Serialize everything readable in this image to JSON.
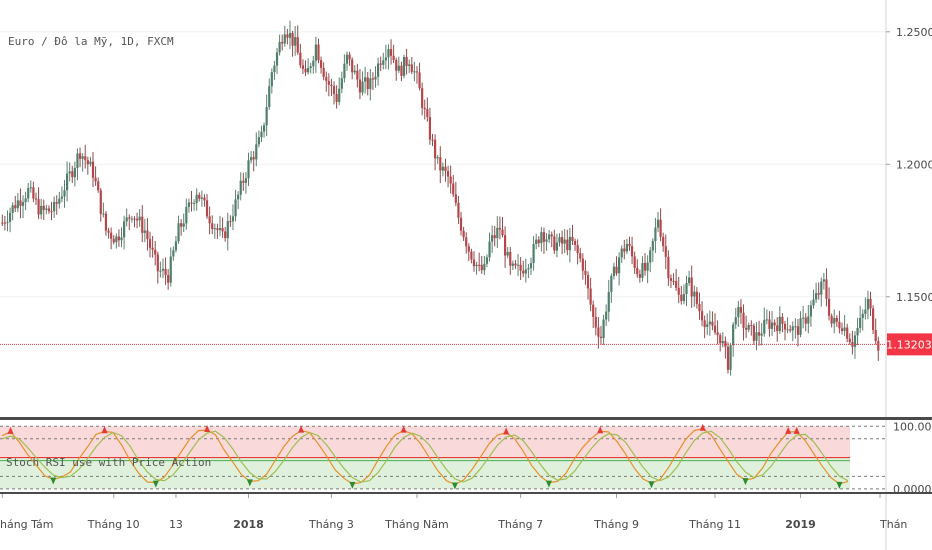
{
  "symbol_title": "Euro / Đô la Mỹ, 1D, FXCM",
  "indicator_label": "Stoch RSI use with Price Action",
  "colors": {
    "up": "#26a69a",
    "down": "#ef5350",
    "candle_body_up": "#4f7f6a",
    "candle_body_down": "#b6464a",
    "last_price": "#f23645",
    "stoch_k": "#e8902a",
    "stoch_d": "#9fbf52",
    "overbought_zone": "#f8d2d2",
    "oversold_zone": "#d9efd6",
    "signal_up": "#2e8b2e",
    "signal_down": "#e53935"
  },
  "chart_data": [
    {
      "type": "candlestick",
      "title": "Euro / Đô la Mỹ, 1D, FXCM",
      "ylim": [
        1.105,
        1.262
      ],
      "y_ticks": [
        "1.25000",
        "1.20000",
        "1.15000"
      ],
      "y_tick_values": [
        1.25,
        1.2,
        1.15
      ],
      "last_price": 1.13203,
      "last_price_label": "1.13203",
      "x_tick_labels": [
        "háng Tám",
        "Tháng 10",
        "13",
        "2018",
        "Tháng 3",
        "Tháng Năm",
        "Tháng 7",
        "Tháng 9",
        "Tháng 11",
        "2019",
        "Thán"
      ],
      "x_tick_bold": [
        false,
        false,
        false,
        true,
        false,
        false,
        false,
        false,
        false,
        true,
        false
      ],
      "x_tick_index": [
        0,
        43,
        67,
        95,
        127,
        160,
        200,
        237,
        275,
        308,
        345
      ],
      "bars": 338,
      "price_path": [
        [
          0,
          1.178
        ],
        [
          5,
          1.185
        ],
        [
          10,
          1.19
        ],
        [
          15,
          1.182
        ],
        [
          20,
          1.183
        ],
        [
          27,
          1.198
        ],
        [
          30,
          1.205
        ],
        [
          35,
          1.197
        ],
        [
          40,
          1.175
        ],
        [
          44,
          1.172
        ],
        [
          50,
          1.182
        ],
        [
          55,
          1.175
        ],
        [
          60,
          1.16
        ],
        [
          64,
          1.158
        ],
        [
          68,
          1.175
        ],
        [
          75,
          1.19
        ],
        [
          80,
          1.18
        ],
        [
          85,
          1.172
        ],
        [
          90,
          1.185
        ],
        [
          95,
          1.2
        ],
        [
          100,
          1.21
        ],
        [
          104,
          1.235
        ],
        [
          109,
          1.252
        ],
        [
          113,
          1.245
        ],
        [
          117,
          1.232
        ],
        [
          121,
          1.245
        ],
        [
          125,
          1.232
        ],
        [
          129,
          1.225
        ],
        [
          133,
          1.24
        ],
        [
          138,
          1.23
        ],
        [
          142,
          1.23
        ],
        [
          146,
          1.24
        ],
        [
          149,
          1.245
        ],
        [
          153,
          1.235
        ],
        [
          157,
          1.24
        ],
        [
          160,
          1.232
        ],
        [
          164,
          1.215
        ],
        [
          168,
          1.2
        ],
        [
          172,
          1.195
        ],
        [
          176,
          1.18
        ],
        [
          180,
          1.168
        ],
        [
          184,
          1.16
        ],
        [
          186,
          1.16
        ],
        [
          188,
          1.17
        ],
        [
          192,
          1.176
        ],
        [
          196,
          1.16
        ],
        [
          200,
          1.16
        ],
        [
          204,
          1.165
        ],
        [
          208,
          1.175
        ],
        [
          212,
          1.17
        ],
        [
          216,
          1.17
        ],
        [
          220,
          1.17
        ],
        [
          224,
          1.162
        ],
        [
          228,
          1.142
        ],
        [
          231,
          1.135
        ],
        [
          234,
          1.152
        ],
        [
          238,
          1.165
        ],
        [
          241,
          1.17
        ],
        [
          245,
          1.16
        ],
        [
          249,
          1.16
        ],
        [
          253,
          1.18
        ],
        [
          257,
          1.16
        ],
        [
          261,
          1.15
        ],
        [
          265,
          1.155
        ],
        [
          269,
          1.145
        ],
        [
          273,
          1.138
        ],
        [
          277,
          1.135
        ],
        [
          280,
          1.125
        ],
        [
          283,
          1.145
        ],
        [
          287,
          1.138
        ],
        [
          291,
          1.135
        ],
        [
          295,
          1.14
        ],
        [
          299,
          1.14
        ],
        [
          302,
          1.14
        ],
        [
          306,
          1.137
        ],
        [
          309,
          1.14
        ],
        [
          313,
          1.148
        ],
        [
          317,
          1.155
        ],
        [
          320,
          1.14
        ],
        [
          324,
          1.14
        ],
        [
          328,
          1.133
        ],
        [
          331,
          1.14
        ],
        [
          334,
          1.148
        ],
        [
          338,
          1.132
        ]
      ]
    },
    {
      "type": "line",
      "title": "Stoch RSI use with Price Action",
      "ylim": [
        -5,
        110
      ],
      "y_ticks": [
        "100.0000",
        "0.0000"
      ],
      "y_tick_values": [
        100,
        0
      ],
      "overbought": 80,
      "oversold": 20,
      "midline": 50,
      "series": [
        {
          "role": "k",
          "values": [
            85,
            91,
            75,
            55,
            38,
            21,
            15,
            19,
            27,
            48,
            67,
            87,
            92,
            90,
            70,
            45,
            25,
            11,
            10,
            19,
            38,
            60,
            80,
            93,
            94,
            86,
            62,
            43,
            23,
            12,
            13,
            24,
            46,
            68,
            84,
            93,
            90,
            72,
            52,
            30,
            17,
            8,
            10,
            22,
            46,
            68,
            86,
            93,
            88,
            72,
            50,
            29,
            13,
            7,
            14,
            31,
            51,
            72,
            86,
            90,
            80,
            60,
            37,
            20,
            10,
            12,
            25,
            48,
            67,
            81,
            92,
            91,
            75,
            55,
            33,
            16,
            9,
            15,
            34,
            57,
            79,
            93,
            96,
            86,
            64,
            43,
            23,
            14,
            17,
            33,
            57,
            75,
            91,
            91,
            77,
            56,
            36,
            18,
            8,
            12
          ]
        },
        {
          "role": "d",
          "values": [
            80,
            84,
            80,
            66,
            50,
            35,
            22,
            18,
            20,
            31,
            48,
            67,
            82,
            90,
            85,
            68,
            45,
            27,
            15,
            13,
            22,
            39,
            59,
            78,
            89,
            92,
            82,
            64,
            43,
            26,
            16,
            16,
            28,
            46,
            66,
            82,
            90,
            85,
            70,
            51,
            33,
            18,
            11,
            13,
            26,
            45,
            67,
            82,
            89,
            84,
            70,
            50,
            31,
            16,
            11,
            17,
            32,
            51,
            70,
            83,
            86,
            77,
            59,
            39,
            22,
            14,
            16,
            28,
            47,
            65,
            80,
            88,
            86,
            74,
            54,
            35,
            19,
            13,
            19,
            35,
            57,
            77,
            89,
            92,
            82,
            64,
            43,
            27,
            18,
            22,
            36,
            55,
            74,
            86,
            87,
            75,
            56,
            36,
            20,
            13
          ]
        }
      ]
    }
  ]
}
